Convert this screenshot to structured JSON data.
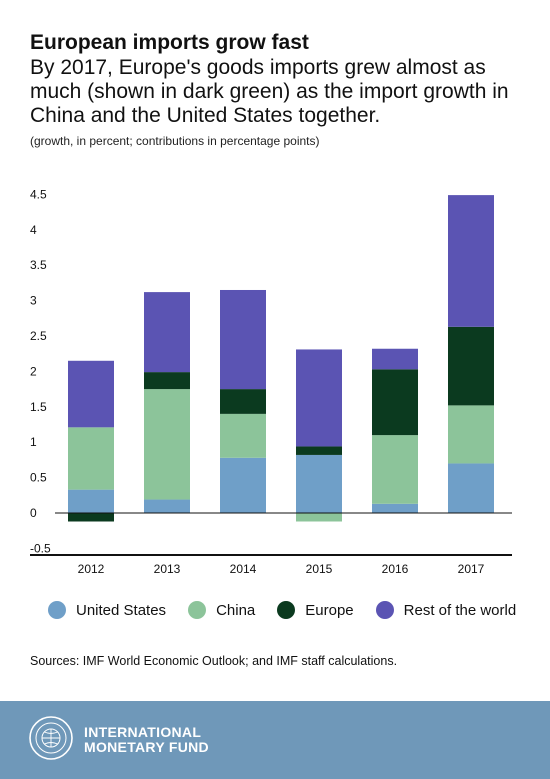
{
  "header": {
    "title": "European imports grow fast",
    "subtitle": "By 2017, Europe's goods imports grew almost as much (shown in dark green) as the import growth in China and the United States together.",
    "units": "(growth, in percent; contributions in percentage points)"
  },
  "chart_data": {
    "type": "bar",
    "stacked": true,
    "categories": [
      "2012",
      "2013",
      "2014",
      "2015",
      "2016",
      "2017"
    ],
    "series": [
      {
        "name": "United States",
        "color": "#6f9fc8",
        "values": [
          0.33,
          0.19,
          0.78,
          0.82,
          0.13,
          0.7
        ]
      },
      {
        "name": "China",
        "color": "#8cc49a",
        "values": [
          0.88,
          1.56,
          0.62,
          -0.12,
          0.97,
          0.82
        ]
      },
      {
        "name": "Europe",
        "color": "#0b3a1f",
        "values": [
          -0.12,
          0.24,
          0.35,
          0.12,
          0.93,
          1.11
        ]
      },
      {
        "name": "Rest of the world",
        "color": "#5b54b3",
        "values": [
          0.94,
          1.13,
          1.4,
          1.37,
          0.29,
          1.86
        ]
      }
    ],
    "y_ticks": [
      "4.5",
      "4",
      "3.5",
      "3",
      "2.5",
      "2",
      "1.5",
      "1",
      "0.5",
      "0",
      "-0.5"
    ],
    "ylim": [
      -0.5,
      4.5
    ],
    "grid": false,
    "legend_position": "bottom"
  },
  "source": "Sources: IMF World Economic Outlook; and IMF staff calculations.",
  "footer": {
    "brand_line1": "INTERNATIONAL",
    "brand_line2": "MONETARY FUND"
  }
}
